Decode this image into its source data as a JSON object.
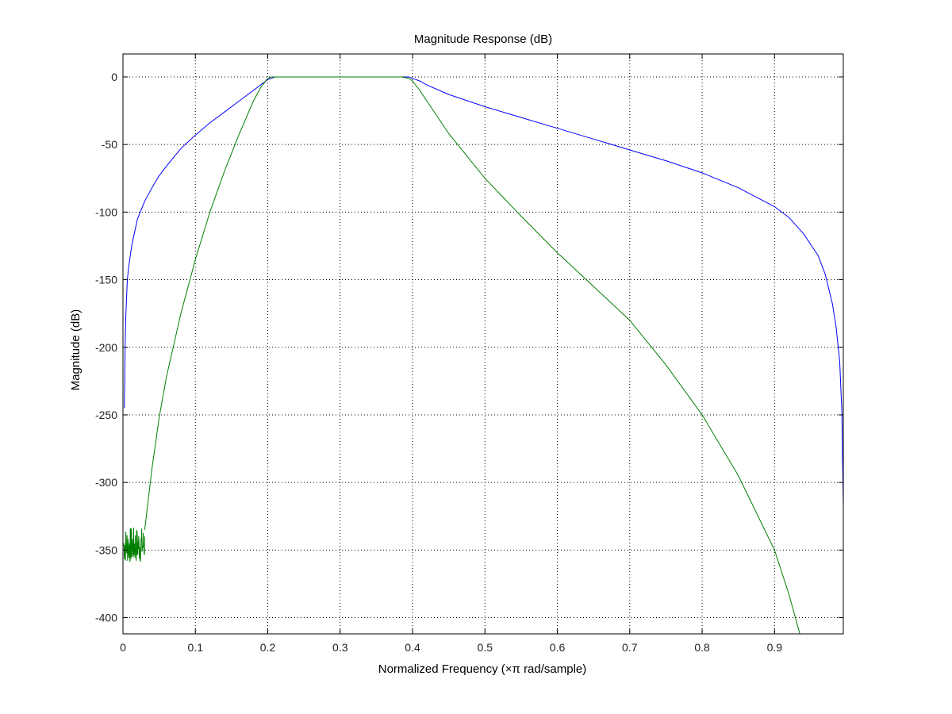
{
  "chart_data": {
    "type": "line",
    "title": "Magnitude Response (dB)",
    "xlabel": "Normalized Frequency (×π rad/sample)",
    "ylabel": "Magnitude (dB)",
    "xlim": [
      0,
      0.995
    ],
    "ylim": [
      -412,
      17
    ],
    "x_ticks": [
      0,
      0.1,
      0.2,
      0.3,
      0.4,
      0.5,
      0.6,
      0.7,
      0.8,
      0.9
    ],
    "x_tick_labels": [
      "0",
      "0.1",
      "0.2",
      "0.3",
      "0.4",
      "0.5",
      "0.6",
      "0.7",
      "0.8",
      "0.9"
    ],
    "y_ticks": [
      0,
      -50,
      -100,
      -150,
      -200,
      -250,
      -300,
      -350,
      -400
    ],
    "y_tick_labels": [
      "0",
      "-50",
      "-100",
      "-150",
      "-200",
      "-250",
      "-300",
      "-350",
      "-400"
    ],
    "grid": true,
    "series": [
      {
        "color": "#0000ff",
        "x": [
          0.002,
          0.003,
          0.004,
          0.006,
          0.008,
          0.012,
          0.016,
          0.02,
          0.03,
          0.04,
          0.05,
          0.06,
          0.08,
          0.1,
          0.12,
          0.14,
          0.16,
          0.18,
          0.19,
          0.2,
          0.205,
          0.21,
          0.22,
          0.3,
          0.37,
          0.385,
          0.395,
          0.4,
          0.41,
          0.42,
          0.45,
          0.5,
          0.55,
          0.6,
          0.65,
          0.7,
          0.75,
          0.8,
          0.85,
          0.9,
          0.92,
          0.94,
          0.96,
          0.97,
          0.98,
          0.985,
          0.99,
          0.993,
          0.995
        ],
        "y": [
          -245,
          -200,
          -175,
          -150,
          -140,
          -125,
          -115,
          -105,
          -92,
          -82,
          -73,
          -66,
          -53,
          -43,
          -34,
          -26,
          -18,
          -10,
          -6,
          -2,
          -1,
          0,
          0,
          0,
          0,
          0,
          0,
          -1,
          -3,
          -6,
          -13,
          -22,
          -30,
          -38,
          -46,
          -54,
          -62,
          -71,
          -82,
          -96,
          -104,
          -116,
          -132,
          -146,
          -168,
          -185,
          -210,
          -248,
          -317
        ]
      },
      {
        "color": "#007f00",
        "x": [
          0.03,
          0.04,
          0.05,
          0.06,
          0.08,
          0.1,
          0.12,
          0.14,
          0.16,
          0.18,
          0.19,
          0.2,
          0.205,
          0.21,
          0.22,
          0.3,
          0.37,
          0.385,
          0.395,
          0.4,
          0.41,
          0.42,
          0.45,
          0.5,
          0.55,
          0.6,
          0.65,
          0.7,
          0.75,
          0.8,
          0.85,
          0.9,
          0.92,
          0.935
        ],
        "y": [
          -335,
          -290,
          -252,
          -222,
          -175,
          -135,
          -100,
          -70,
          -43,
          -18,
          -8,
          -1,
          0,
          0,
          0,
          0,
          0,
          0,
          -1,
          -3,
          -10,
          -18,
          -42,
          -75,
          -103,
          -130,
          -155,
          -180,
          -213,
          -250,
          -295,
          -350,
          -383,
          -412
        ]
      }
    ],
    "noise": {
      "series": 1,
      "x_range": [
        0.001,
        0.03
      ],
      "y_range": [
        -360,
        -333
      ]
    }
  }
}
